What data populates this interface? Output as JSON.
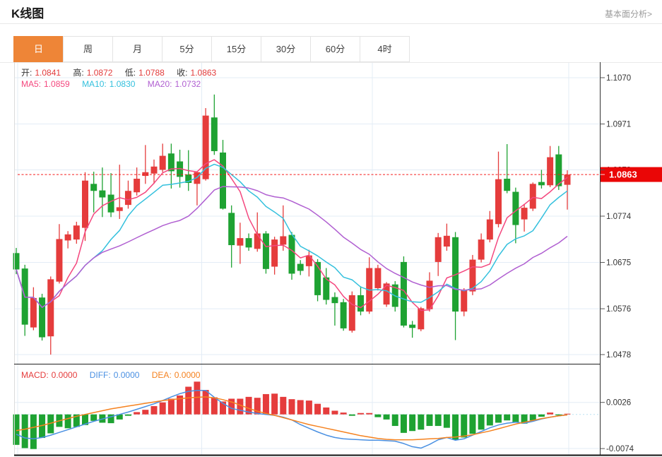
{
  "header": {
    "title": "K线图",
    "link": "基本面分析>"
  },
  "tabs": {
    "items": [
      "日",
      "周",
      "月",
      "5分",
      "15分",
      "30分",
      "60分",
      "4时"
    ],
    "active_index": 0
  },
  "ohlc": {
    "open_label": "开:",
    "open": "1.0841",
    "high_label": "高:",
    "high": "1.0872",
    "low_label": "低:",
    "low": "1.0788",
    "close_label": "收:",
    "close": "1.0863"
  },
  "ma_legend": {
    "ma5_label": "MA5:",
    "ma5": "1.0859",
    "ma10_label": "MA10:",
    "ma10": "1.0830",
    "ma20_label": "MA20:",
    "ma20": "1.0732"
  },
  "macd_legend": {
    "macd_label": "MACD:",
    "macd": "0.0000",
    "diff_label": "DIFF:",
    "diff": "0.0000",
    "dea_label": "DEA:",
    "dea": "0.0000"
  },
  "price_tag": "1.0863",
  "axis": {
    "price_ticks": [
      "1.1070",
      "1.0971",
      "1.0873",
      "1.0774",
      "1.0675",
      "1.0576",
      "1.0478"
    ],
    "macd_ticks": [
      "0.0026",
      "-0.0074"
    ]
  },
  "colors": {
    "up": "#e53c3c",
    "down": "#1ea232",
    "ma5": "#f4477e",
    "ma10": "#33c0dd",
    "ma20": "#b05fd1",
    "diff": "#4a90e2",
    "dea": "#f5821f",
    "tab_active": "#ee8537",
    "price_tag_bg": "#ea0606",
    "price_line": "#f51c1c",
    "grid": "#e3ecf6",
    "macd_zero_line": "#b9e2f1",
    "axis_text": "#333333"
  },
  "chart_data": {
    "type": "candlestick+macd",
    "title": "K线图 (daily K-line with MA5/MA10/MA20 and MACD)",
    "legend_position": "top-left",
    "grid": true,
    "price_axis": {
      "max": 1.107,
      "min": 1.0478,
      "ticks": [
        1.107,
        1.0971,
        1.0873,
        1.0774,
        1.0675,
        1.0576,
        1.0478
      ]
    },
    "current_price": 1.0863,
    "ma_periods": [
      5,
      10,
      20
    ],
    "candles": [
      [
        1.0695,
        1.0706,
        1.065,
        1.066
      ],
      [
        1.0662,
        1.067,
        1.0518,
        1.0542
      ],
      [
        1.0536,
        1.0622,
        1.053,
        1.0599
      ],
      [
        1.06,
        1.0608,
        1.0508,
        1.0515
      ],
      [
        1.0517,
        1.0645,
        1.0478,
        1.0639
      ],
      [
        1.0634,
        1.0757,
        1.063,
        1.0725
      ],
      [
        1.0722,
        1.0742,
        1.0705,
        1.0735
      ],
      [
        1.0724,
        1.0762,
        1.0715,
        1.0754
      ],
      [
        1.0749,
        1.0868,
        1.0721,
        1.085
      ],
      [
        1.0843,
        1.0869,
        1.0782,
        1.0828
      ],
      [
        1.0829,
        1.0878,
        1.0772,
        1.0814
      ],
      [
        1.082,
        1.0866,
        1.0772,
        1.0782
      ],
      [
        1.0785,
        1.0884,
        1.0768,
        1.0793
      ],
      [
        1.0798,
        1.085,
        1.079,
        1.0828
      ],
      [
        1.0825,
        1.0878,
        1.0818,
        1.0854
      ],
      [
        1.086,
        1.0926,
        1.0843,
        1.0868
      ],
      [
        1.0865,
        1.0895,
        1.0843,
        1.088
      ],
      [
        1.0873,
        1.0929,
        1.0868,
        1.0903
      ],
      [
        1.0908,
        1.0929,
        1.0833,
        1.087
      ],
      [
        1.0891,
        1.0916,
        1.0835,
        1.0858
      ],
      [
        1.0863,
        1.0915,
        1.0828,
        1.0845
      ],
      [
        1.0843,
        1.087,
        1.0797,
        1.0868
      ],
      [
        1.0853,
        1.1005,
        1.085,
        1.0989
      ],
      [
        1.0985,
        1.1034,
        1.0905,
        1.0913
      ],
      [
        1.091,
        1.0937,
        1.0788,
        1.079
      ],
      [
        1.0781,
        1.0797,
        1.0664,
        1.0712
      ],
      [
        1.0711,
        1.076,
        1.0672,
        1.0727
      ],
      [
        1.0727,
        1.0737,
        1.07,
        1.0707
      ],
      [
        1.0704,
        1.0782,
        1.0698,
        1.0737
      ],
      [
        1.0737,
        1.0742,
        1.0651,
        1.0661
      ],
      [
        1.0666,
        1.073,
        1.0649,
        1.0724
      ],
      [
        1.0713,
        1.0797,
        1.07,
        1.0731
      ],
      [
        1.0734,
        1.074,
        1.0638,
        1.0651
      ],
      [
        1.0672,
        1.068,
        1.0648,
        1.0657
      ],
      [
        1.0667,
        1.0702,
        1.0645,
        1.069
      ],
      [
        1.0676,
        1.0682,
        1.0592,
        1.0605
      ],
      [
        1.0643,
        1.0663,
        1.0585,
        1.0595
      ],
      [
        1.0601,
        1.0611,
        1.054,
        1.0588
      ],
      [
        1.059,
        1.0597,
        1.0529,
        1.0534
      ],
      [
        1.0529,
        1.0613,
        1.0525,
        1.0605
      ],
      [
        1.0605,
        1.0624,
        1.0562,
        1.057
      ],
      [
        1.057,
        1.0686,
        1.0565,
        1.0663
      ],
      [
        1.062,
        1.067,
        1.0615,
        1.0663
      ],
      [
        1.0585,
        1.0633,
        1.058,
        1.063
      ],
      [
        1.0628,
        1.0635,
        1.057,
        1.058
      ],
      [
        1.0676,
        1.0688,
        1.0536,
        1.054
      ],
      [
        1.0542,
        1.055,
        1.0514,
        1.0535
      ],
      [
        1.0532,
        1.058,
        1.0528,
        1.0577
      ],
      [
        1.0575,
        1.0654,
        1.057,
        1.0636
      ],
      [
        1.0676,
        1.0738,
        1.0646,
        1.0729
      ],
      [
        1.0709,
        1.0758,
        1.07,
        1.0732
      ],
      [
        1.0729,
        1.074,
        1.0509,
        1.057
      ],
      [
        1.057,
        1.062,
        1.056,
        1.0616
      ],
      [
        1.0613,
        1.0691,
        1.0605,
        1.0681
      ],
      [
        1.0681,
        1.0737,
        1.0675,
        1.0724
      ],
      [
        1.0724,
        1.0785,
        1.0718,
        1.0767
      ],
      [
        1.0757,
        1.0912,
        1.075,
        1.0853
      ],
      [
        1.0854,
        1.0928,
        1.0823,
        1.0828
      ],
      [
        1.0826,
        1.0835,
        1.0716,
        1.0755
      ],
      [
        1.0767,
        1.08,
        1.0741,
        1.0792
      ],
      [
        1.079,
        1.0846,
        1.0785,
        1.0843
      ],
      [
        1.0847,
        1.0873,
        1.0833,
        1.084
      ],
      [
        1.084,
        1.0924,
        1.0836,
        1.09
      ],
      [
        1.0906,
        1.0924,
        1.083,
        1.0838
      ],
      [
        1.0841,
        1.0872,
        1.0788,
        1.0863
      ]
    ],
    "macd": {
      "unit": 0.0001,
      "axis_ticks": [
        0.0026,
        -0.0074
      ],
      "histogram": [
        -66,
        -73,
        -75,
        -51,
        -41,
        -27,
        -30,
        -27,
        -23,
        -14,
        -18,
        -19,
        -11,
        -3,
        5,
        10,
        18,
        26,
        34,
        41,
        60,
        71,
        53,
        37,
        28,
        34,
        34,
        38,
        36,
        44,
        45,
        38,
        33,
        31,
        30,
        23,
        15,
        8,
        4,
        -3,
        3,
        3,
        -6,
        -11,
        -25,
        -40,
        -36,
        -33,
        -25,
        -25,
        -29,
        -55,
        -50,
        -42,
        -33,
        -24,
        -18,
        -13,
        -17,
        -20,
        -13,
        -5,
        4,
        -2,
        1
      ],
      "diff": [
        -43,
        -51,
        -53,
        -50,
        -45,
        -39,
        -33,
        -27,
        -21,
        -15,
        -10,
        -5,
        0,
        5,
        11,
        17,
        23,
        30,
        38,
        45,
        50,
        52,
        52,
        37,
        24,
        13,
        9,
        5,
        2,
        0,
        -2,
        -6,
        -12,
        -22,
        -30,
        -38,
        -45,
        -50,
        -53,
        -54,
        -55,
        -56,
        -56,
        -57,
        -58,
        -63,
        -70,
        -73,
        -65,
        -55,
        -50,
        -56,
        -53,
        -45,
        -37,
        -29,
        -23,
        -19,
        -17,
        -19,
        -15,
        -10,
        -6,
        -3,
        -1
      ],
      "dea": [
        -35,
        -32,
        -28,
        -24,
        -19,
        -14,
        -9,
        -4,
        0,
        4,
        8,
        12,
        15,
        18,
        21,
        24,
        27,
        30,
        32,
        34,
        36,
        37,
        38,
        36,
        32,
        27,
        20,
        13,
        7,
        2,
        -2,
        -7,
        -12,
        -17,
        -22,
        -26,
        -30,
        -34,
        -38,
        -42,
        -46,
        -49,
        -52,
        -54,
        -55,
        -55,
        -55,
        -54,
        -53,
        -52,
        -50,
        -49,
        -47,
        -44,
        -40,
        -36,
        -31,
        -26,
        -21,
        -17,
        -13,
        -9,
        -6,
        -3,
        -1
      ]
    }
  }
}
